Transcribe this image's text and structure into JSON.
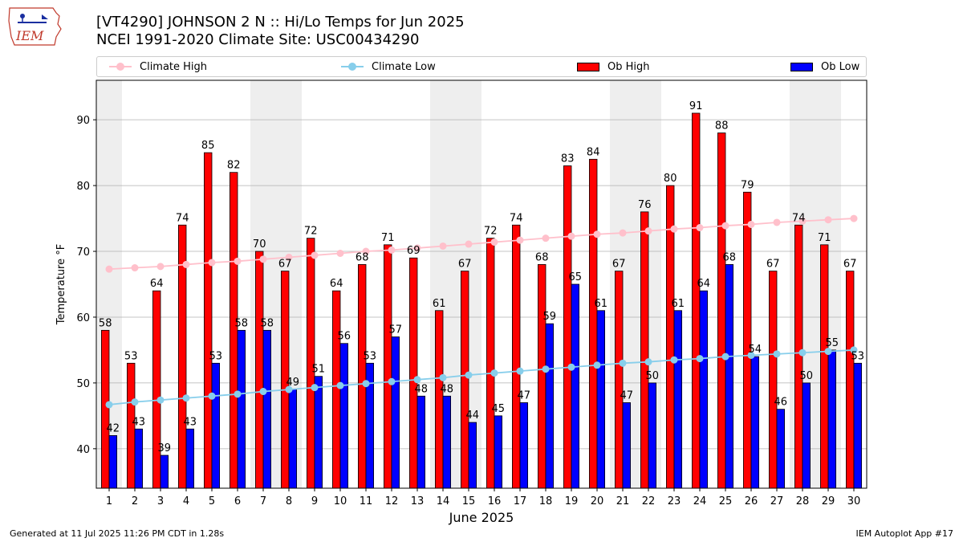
{
  "logo": {
    "text": "IEM",
    "icon": "iowa-state-weather-logo"
  },
  "header": {
    "title": "[VT4290] JOHNSON 2 N :: Hi/Lo Temps for Jun 2025",
    "subtitle": "NCEI 1991-2020 Climate Site: USC00434290"
  },
  "legend": [
    {
      "label": "Climate High",
      "color": "#ffc0cb",
      "kind": "line"
    },
    {
      "label": "Climate Low",
      "color": "#87ceeb",
      "kind": "line"
    },
    {
      "label": "Ob High",
      "color": "#ff0000",
      "kind": "bar"
    },
    {
      "label": "Ob Low",
      "color": "#0000ff",
      "kind": "bar"
    }
  ],
  "footer": {
    "left": "Generated at 11 Jul 2025 11:26 PM CDT in 1.28s",
    "right": "IEM Autoplot App #17"
  },
  "chart_data": {
    "type": "bar",
    "xlabel": "June 2025",
    "ylabel": "Temperature °F",
    "ylim": [
      34,
      96
    ],
    "yticks": [
      40,
      50,
      60,
      70,
      80,
      90
    ],
    "grid": "horizontal",
    "legend_position": "top",
    "categories": [
      1,
      2,
      3,
      4,
      5,
      6,
      7,
      8,
      9,
      10,
      11,
      12,
      13,
      14,
      15,
      16,
      17,
      18,
      19,
      20,
      21,
      22,
      23,
      24,
      25,
      26,
      27,
      28,
      29,
      30
    ],
    "weekend_shading": [
      [
        1,
        1
      ],
      [
        7,
        8
      ],
      [
        14,
        15
      ],
      [
        21,
        22
      ],
      [
        28,
        29
      ]
    ],
    "series": [
      {
        "name": "Ob High",
        "type": "bar",
        "color": "#ff0000",
        "values": [
          58,
          53,
          64,
          74,
          85,
          82,
          70,
          67,
          72,
          64,
          68,
          71,
          69,
          61,
          67,
          72,
          74,
          68,
          83,
          84,
          67,
          76,
          80,
          91,
          88,
          79,
          67,
          74,
          71,
          67
        ]
      },
      {
        "name": "Ob Low",
        "type": "bar",
        "color": "#0000ff",
        "values": [
          42,
          43,
          39,
          43,
          53,
          58,
          58,
          49,
          51,
          56,
          53,
          57,
          48,
          48,
          44,
          45,
          47,
          59,
          65,
          61,
          47,
          50,
          61,
          64,
          68,
          54,
          46,
          50,
          55,
          53
        ]
      },
      {
        "name": "Climate High",
        "type": "line",
        "color": "#ffc0cb",
        "values": [
          67.3,
          67.5,
          67.7,
          68.0,
          68.3,
          68.5,
          68.8,
          69.1,
          69.4,
          69.7,
          70.0,
          70.2,
          70.5,
          70.8,
          71.1,
          71.4,
          71.7,
          72.0,
          72.3,
          72.6,
          72.8,
          73.1,
          73.4,
          73.6,
          73.9,
          74.1,
          74.4,
          74.6,
          74.8,
          75.0
        ]
      },
      {
        "name": "Climate Low",
        "type": "line",
        "color": "#87ceeb",
        "values": [
          46.7,
          47.1,
          47.4,
          47.7,
          48.0,
          48.3,
          48.7,
          49.0,
          49.3,
          49.6,
          49.9,
          50.2,
          50.5,
          50.8,
          51.2,
          51.5,
          51.8,
          52.1,
          52.4,
          52.7,
          53.0,
          53.2,
          53.5,
          53.7,
          54.0,
          54.2,
          54.4,
          54.6,
          54.8,
          55.0
        ]
      }
    ]
  }
}
